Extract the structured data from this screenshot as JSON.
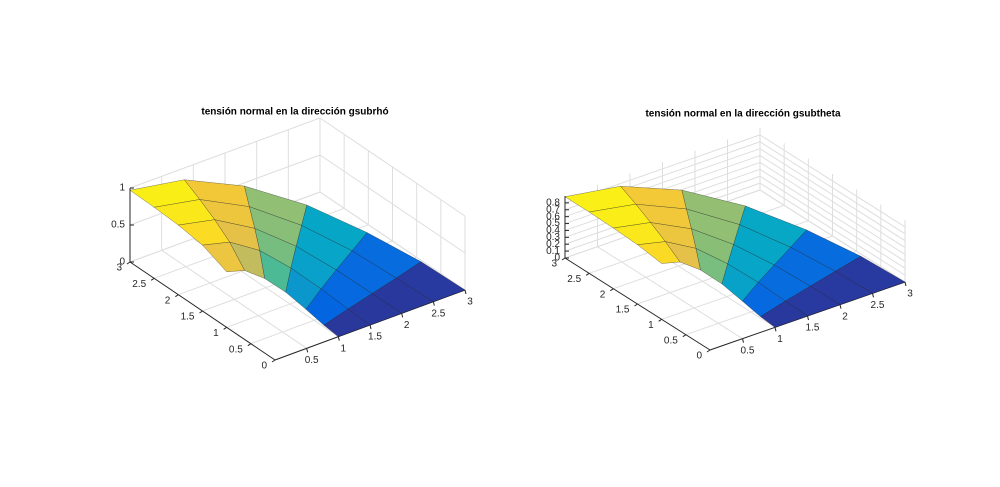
{
  "chart_data": [
    {
      "type": "surface",
      "title": "tensión normal en la dirección gsubrhó",
      "colormap": "parula",
      "grid": true,
      "x": [
        [
          1,
          1.5,
          2,
          2.5,
          3
        ],
        [
          0.97,
          1.45,
          1.93,
          2.41,
          2.9
        ],
        [
          0.87,
          1.3,
          1.73,
          2.17,
          2.6
        ],
        [
          0.71,
          1.06,
          1.41,
          1.77,
          2.12
        ],
        [
          0.5,
          0.75,
          1,
          1.25,
          1.5
        ],
        [
          0.26,
          0.39,
          0.52,
          0.65,
          0.78
        ],
        [
          0,
          0,
          0,
          0,
          0
        ]
      ],
      "y": [
        [
          0,
          0,
          0,
          0,
          0
        ],
        [
          0.26,
          0.39,
          0.52,
          0.65,
          0.78
        ],
        [
          0.5,
          0.75,
          1,
          1.25,
          1.5
        ],
        [
          0.71,
          1.06,
          1.41,
          1.77,
          2.12
        ],
        [
          0.87,
          1.3,
          1.73,
          2.17,
          2.6
        ],
        [
          0.97,
          1.45,
          1.93,
          2.41,
          2.9
        ],
        [
          1,
          1.5,
          2,
          2.5,
          3
        ]
      ],
      "z": [
        [
          0,
          0,
          0,
          0,
          0
        ],
        [
          0.05,
          0.06,
          0.06,
          0.06,
          0.07
        ],
        [
          0.19,
          0.22,
          0.23,
          0.24,
          0.24
        ],
        [
          0.38,
          0.44,
          0.47,
          0.48,
          0.49
        ],
        [
          0.56,
          0.67,
          0.7,
          0.72,
          0.73
        ],
        [
          0.7,
          0.83,
          0.88,
          0.9,
          0.91
        ],
        [
          0.75,
          0.89,
          0.94,
          0.96,
          0.97
        ]
      ],
      "xlim": [
        0,
        3
      ],
      "ylim": [
        0,
        3
      ],
      "zlim": [
        0,
        1
      ],
      "xticks": [
        0.5,
        1,
        1.5,
        2,
        2.5,
        3
      ],
      "yticks": [
        0,
        0.5,
        1,
        1.5,
        2,
        2.5,
        3
      ],
      "zticks": [
        0,
        0.5,
        1
      ]
    },
    {
      "type": "surface",
      "title": "tensión normal en la dirección gsubtheta",
      "colormap": "parula",
      "grid": true,
      "x": [
        [
          1,
          1.5,
          2,
          2.5,
          3
        ],
        [
          0.97,
          1.45,
          1.93,
          2.41,
          2.9
        ],
        [
          0.87,
          1.3,
          1.73,
          2.17,
          2.6
        ],
        [
          0.71,
          1.06,
          1.41,
          1.77,
          2.12
        ],
        [
          0.5,
          0.75,
          1,
          1.25,
          1.5
        ],
        [
          0.26,
          0.39,
          0.52,
          0.65,
          0.78
        ],
        [
          0,
          0,
          0,
          0,
          0
        ]
      ],
      "y": [
        [
          0,
          0,
          0,
          0,
          0
        ],
        [
          0.26,
          0.39,
          0.52,
          0.65,
          0.78
        ],
        [
          0.5,
          0.75,
          1,
          1.25,
          1.5
        ],
        [
          0.71,
          1.06,
          1.41,
          1.77,
          2.12
        ],
        [
          0.87,
          1.3,
          1.73,
          2.17,
          2.6
        ],
        [
          0.97,
          1.45,
          1.93,
          2.41,
          2.9
        ],
        [
          1,
          1.5,
          2,
          2.5,
          3
        ]
      ],
      "z": [
        [
          0,
          0,
          0,
          0,
          0
        ],
        [
          0.05,
          0.06,
          0.06,
          0.06,
          0.06
        ],
        [
          0.2,
          0.22,
          0.22,
          0.22,
          0.22
        ],
        [
          0.41,
          0.43,
          0.44,
          0.45,
          0.45
        ],
        [
          0.61,
          0.65,
          0.66,
          0.67,
          0.67
        ],
        [
          0.76,
          0.8,
          0.82,
          0.83,
          0.83
        ],
        [
          0.81,
          0.86,
          0.88,
          0.89,
          0.89
        ]
      ],
      "xlim": [
        0,
        3
      ],
      "ylim": [
        0,
        3
      ],
      "zlim": [
        0,
        0.9
      ],
      "xticks": [
        0.5,
        1,
        1.5,
        2,
        2.5,
        3
      ],
      "yticks": [
        0,
        0.5,
        1,
        1.5,
        2,
        2.5,
        3
      ],
      "zticks": [
        0,
        0.1,
        0.2,
        0.3,
        0.4,
        0.5,
        0.6,
        0.7,
        0.8
      ]
    }
  ]
}
